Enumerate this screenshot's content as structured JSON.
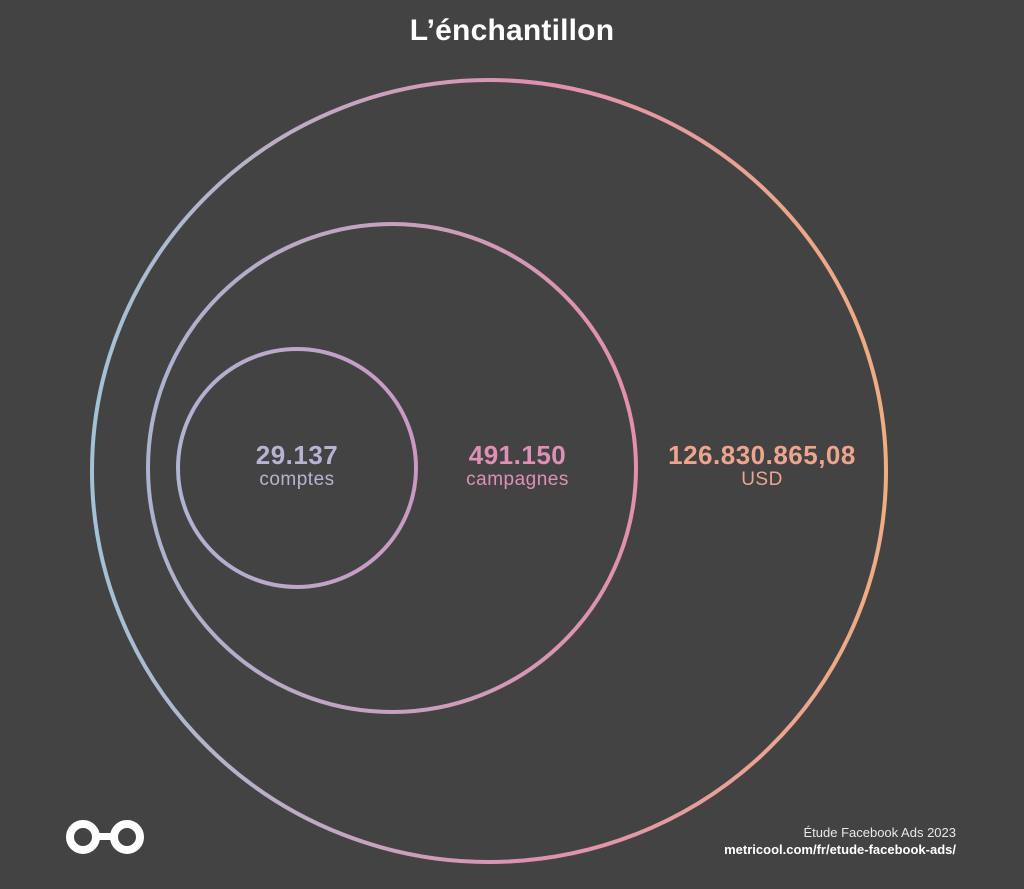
{
  "title": "L’énchantillon",
  "colors": {
    "background": "#434343",
    "gradient_start": "#a3c2d6",
    "gradient_mid": "#de90b1",
    "gradient_end": "#f0ad82",
    "inner_text": "#b7b3d2",
    "middle_text": "#de90b6",
    "outer_text": "#eda58f"
  },
  "circles": [
    {
      "value": "29.137",
      "unit": "comptes"
    },
    {
      "value": "491.150",
      "unit": "campagnes"
    },
    {
      "value": "126.830.865,08",
      "unit": "USD"
    }
  ],
  "footer": {
    "study": "Étude Facebook Ads 2023",
    "url": "metricool.com/fr/etude-facebook-ads/"
  },
  "logo": {
    "icon": "infinity-loop-icon"
  }
}
